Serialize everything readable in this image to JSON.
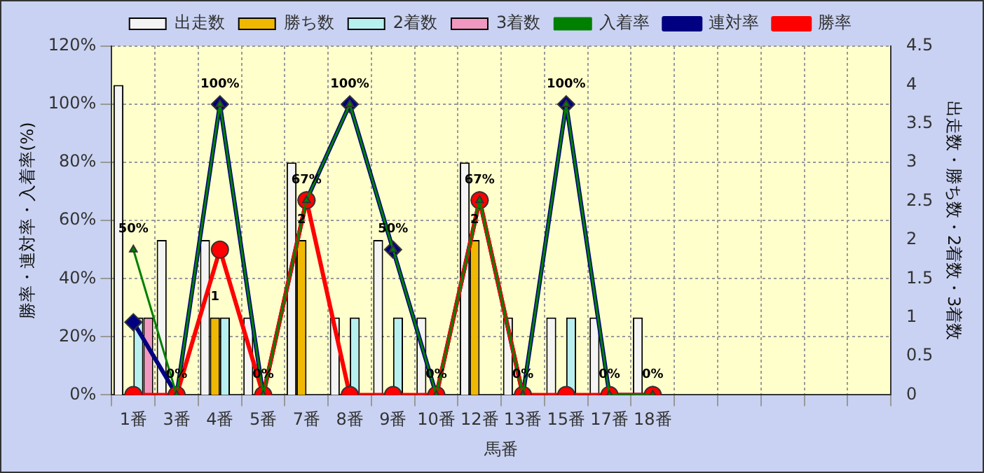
{
  "chart_data": {
    "type": "bar",
    "xlabel": "馬番",
    "ylabel": "勝率・連対率・入着率(%)",
    "y2label": "出走数・勝ち数・2着数・3着数",
    "categories": [
      "1番",
      "3番",
      "4番",
      "5番",
      "7番",
      "8番",
      "9番",
      "10番",
      "12番",
      "13番",
      "15番",
      "17番",
      "18番",
      null,
      null,
      null,
      null,
      null
    ],
    "series": [
      {
        "name": "出走数",
        "type": "bar",
        "axis": "y2",
        "color": "#f4f4f4",
        "values": [
          4,
          2,
          2,
          1,
          3,
          1,
          2,
          1,
          3,
          1,
          1,
          1,
          1,
          null,
          null,
          null,
          null,
          null
        ]
      },
      {
        "name": "勝ち数",
        "type": "bar",
        "axis": "y2",
        "color": "#f0b800",
        "values": [
          0,
          0,
          1,
          0,
          2,
          0,
          0,
          0,
          2,
          0,
          0,
          0,
          0,
          null,
          null,
          null,
          null,
          null
        ],
        "value_labels": [
          null,
          null,
          "1",
          null,
          "2",
          null,
          null,
          null,
          "2",
          null,
          null,
          null,
          null,
          null,
          null,
          null,
          null,
          null
        ]
      },
      {
        "name": "2着数",
        "type": "bar",
        "axis": "y2",
        "color": "#b8f0f0",
        "values": [
          1,
          0,
          1,
          0,
          0,
          1,
          1,
          0,
          0,
          0,
          1,
          0,
          0,
          null,
          null,
          null,
          null,
          null
        ]
      },
      {
        "name": "3着数",
        "type": "bar",
        "axis": "y2",
        "color": "#f098c0",
        "values": [
          1,
          0,
          0,
          0,
          0,
          0,
          0,
          0,
          0,
          0,
          0,
          0,
          0,
          null,
          null,
          null,
          null,
          null
        ]
      },
      {
        "name": "入着率",
        "type": "line",
        "color": "#008000",
        "marker": "triangle",
        "values": [
          50,
          0,
          100,
          0,
          67,
          100,
          50,
          0,
          67,
          0,
          100,
          0,
          0,
          null,
          null,
          null,
          null,
          null
        ],
        "value_labels": [
          "50%",
          "0%",
          "100%",
          "0%",
          "67%",
          "100%",
          "50%",
          "0%",
          "67%",
          "0%",
          "100%",
          "0%",
          "0%",
          null,
          null,
          null,
          null,
          null
        ]
      },
      {
        "name": "連対率",
        "type": "line",
        "color": "#000080",
        "marker": "diamond",
        "values": [
          25,
          0,
          100,
          0,
          67,
          100,
          50,
          0,
          67,
          0,
          100,
          0,
          0,
          null,
          null,
          null,
          null,
          null
        ]
      },
      {
        "name": "勝率",
        "type": "line",
        "color": "#ff0000",
        "marker": "circle",
        "values": [
          0,
          0,
          50,
          0,
          67,
          0,
          0,
          0,
          67,
          0,
          0,
          0,
          0,
          null,
          null,
          null,
          null,
          null
        ]
      }
    ],
    "ylim": [
      0,
      120
    ],
    "yticks": [
      {
        "value": 0,
        "label": "0%"
      },
      {
        "value": 20,
        "label": "20%"
      },
      {
        "value": 40,
        "label": "40%"
      },
      {
        "value": 60,
        "label": "60%"
      },
      {
        "value": 80,
        "label": "80%"
      },
      {
        "value": 100,
        "label": "100%"
      },
      {
        "value": 120,
        "label": "120%"
      }
    ],
    "y2lim": [
      0,
      4.5
    ],
    "y2ticks": [
      0,
      0.5,
      1,
      1.5,
      2,
      2.5,
      3,
      3.5,
      4,
      4.5
    ],
    "grid": true,
    "legend": "top"
  }
}
